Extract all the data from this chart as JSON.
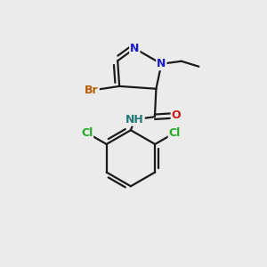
{
  "background_color": "#ebebeb",
  "bond_color": "#1a1a1a",
  "atom_colors": {
    "Br": "#b85c00",
    "N": "#1a1acc",
    "O": "#cc1a1a",
    "Cl": "#22aa22",
    "NH": "#227777",
    "C": "#1a1a1a"
  },
  "figsize": [
    3.0,
    3.0
  ],
  "dpi": 100
}
